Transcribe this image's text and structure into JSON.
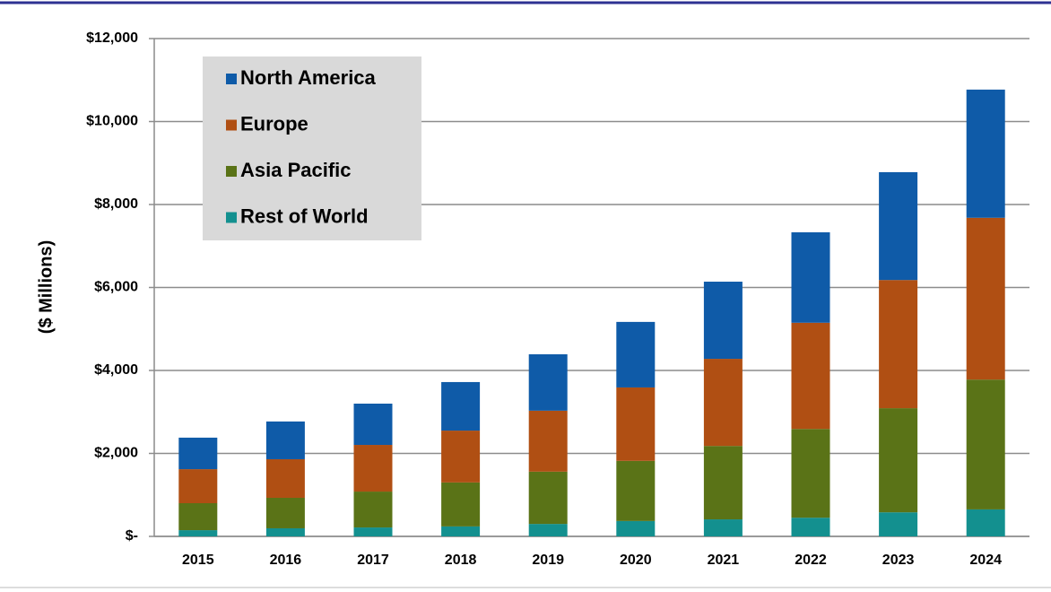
{
  "chart_data": {
    "type": "stacked_bar",
    "y_label": "($ Millions)",
    "categories": [
      "2015",
      "2016",
      "2017",
      "2018",
      "2019",
      "2020",
      "2021",
      "2022",
      "2023",
      "2024"
    ],
    "series": [
      {
        "name": "Rest of World",
        "color": "#13908f",
        "values": [
          150,
          195,
          215,
          240,
          300,
          370,
          410,
          450,
          580,
          650
        ]
      },
      {
        "name": "Asia Pacific",
        "color": "#5a7317",
        "values": [
          650,
          735,
          865,
          1060,
          1260,
          1450,
          1770,
          2140,
          2510,
          3130
        ]
      },
      {
        "name": "Europe",
        "color": "#b04f13",
        "values": [
          820,
          930,
          1125,
          1250,
          1470,
          1770,
          2100,
          2560,
          3090,
          3900
        ]
      },
      {
        "name": "North America",
        "color": "#0f5ba8",
        "values": [
          760,
          910,
          995,
          1170,
          1360,
          1580,
          1860,
          2180,
          2600,
          3090
        ]
      }
    ],
    "ylim": [
      0,
      12000
    ],
    "yticks": [
      {
        "value": 0,
        "label": "$-"
      },
      {
        "value": 2000,
        "label": "$2,000"
      },
      {
        "value": 4000,
        "label": "$4,000"
      },
      {
        "value": 6000,
        "label": "$6,000"
      },
      {
        "value": 8000,
        "label": "$8,000"
      },
      {
        "value": 10000,
        "label": "$10,000"
      },
      {
        "value": 12000,
        "label": "$12,000"
      }
    ],
    "grid": true,
    "legend": "top-left"
  }
}
